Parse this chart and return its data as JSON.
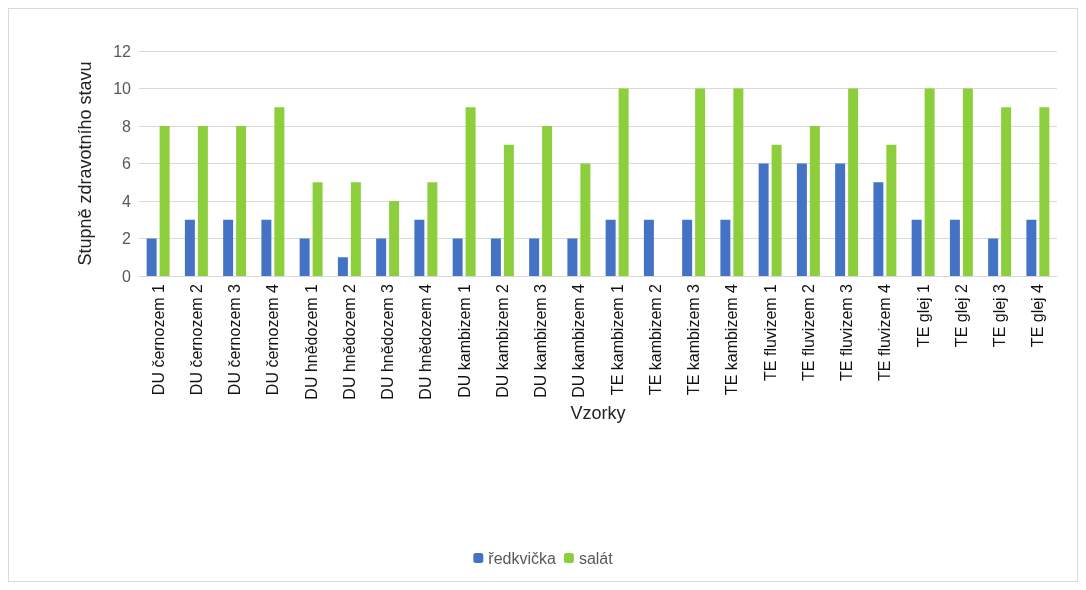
{
  "chart_data": {
    "type": "bar",
    "categories": [
      "DU černozem 1",
      "DU černozem 2",
      "DU černozem 3",
      "DU černozem 4",
      "DU hnědozem 1",
      "DU hnědozem 2",
      "DU hnědozem 3",
      "DU hnědozem 4",
      "DU kambizem 1",
      "DU kambizem 2",
      "DU kambizem 3",
      "DU kambizem 4",
      "TE kambizem 1",
      "TE kambizem 2",
      "TE kambizem 3",
      "TE kambizem 4",
      "TE fluvizem 1",
      "TE fluvizem 2",
      "TE fluvizem 3",
      "TE fluvizem 4",
      "TE glej 1",
      "TE glej 2",
      "TE glej 3",
      "TE glej 4"
    ],
    "series": [
      {
        "name": "ředkvička",
        "color": "#4472c4",
        "values": [
          2,
          3,
          3,
          3,
          2,
          1,
          2,
          3,
          2,
          2,
          2,
          2,
          3,
          3,
          3,
          3,
          6,
          6,
          6,
          5,
          3,
          3,
          2,
          3
        ]
      },
      {
        "name": "salát",
        "color": "#8cce3c",
        "values": [
          8,
          8,
          8,
          9,
          5,
          5,
          4,
          5,
          9,
          7,
          8,
          6,
          10,
          0,
          10,
          10,
          7,
          8,
          10,
          7,
          10,
          10,
          9,
          9
        ]
      }
    ],
    "xlabel": "Vzorky",
    "ylabel": "Stupně zdravotního stavu",
    "ylim": [
      0,
      12
    ],
    "yticks": [
      0,
      2,
      4,
      6,
      8,
      10,
      12
    ],
    "grid": "y",
    "legend": "bottom"
  }
}
